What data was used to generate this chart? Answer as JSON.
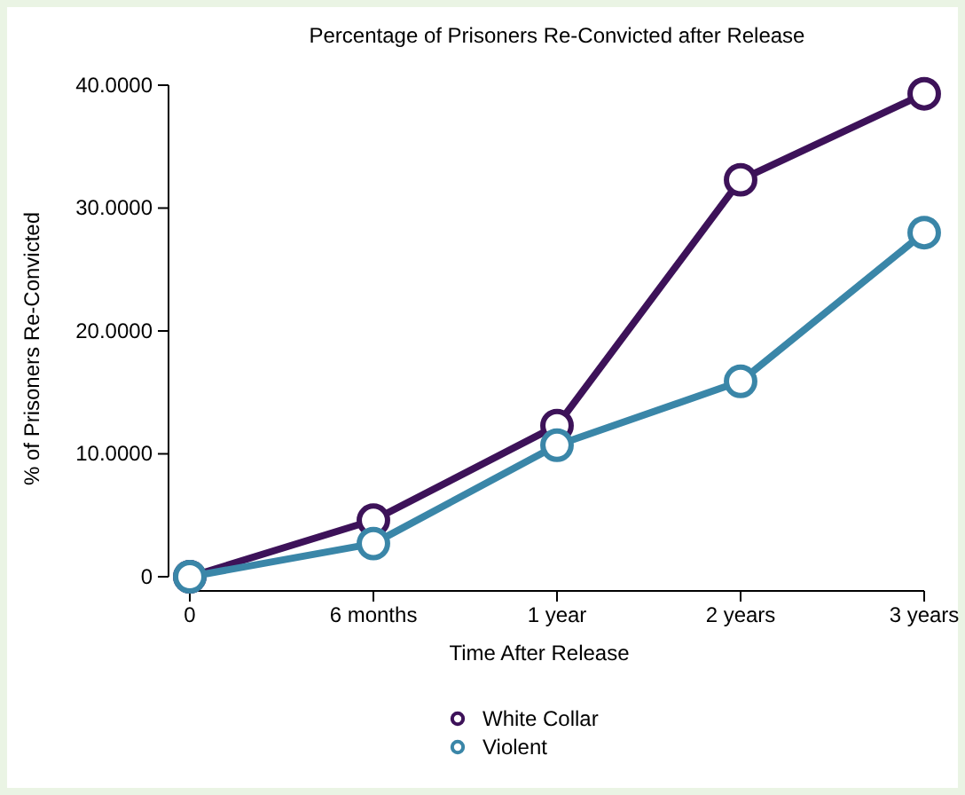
{
  "chart_data": {
    "type": "line",
    "title": "Percentage of Prisoners Re-Convicted after Release",
    "xlabel": "Time After Release",
    "ylabel": "% of Prisoners Re-Convicted",
    "categories": [
      "0",
      "6 months",
      "1 year",
      "2 years",
      "3 years"
    ],
    "series": [
      {
        "name": "White Collar",
        "color": "#3d1259",
        "values": [
          0,
          4.6,
          12.3,
          32.3,
          39.3
        ]
      },
      {
        "name": "Violent",
        "color": "#3a86a8",
        "values": [
          0,
          2.7,
          10.7,
          15.9,
          28.0
        ]
      }
    ],
    "ylim": [
      0,
      40
    ],
    "yticks": [
      0,
      {
        "value": 10,
        "label": "10.0000"
      },
      {
        "value": 20,
        "label": "20.0000"
      },
      {
        "value": 30,
        "label": "30.0000"
      },
      {
        "value": 40,
        "label": "40.0000"
      }
    ],
    "grid": false,
    "legend": "bottom",
    "marker": "circle",
    "line_style": "solid"
  }
}
